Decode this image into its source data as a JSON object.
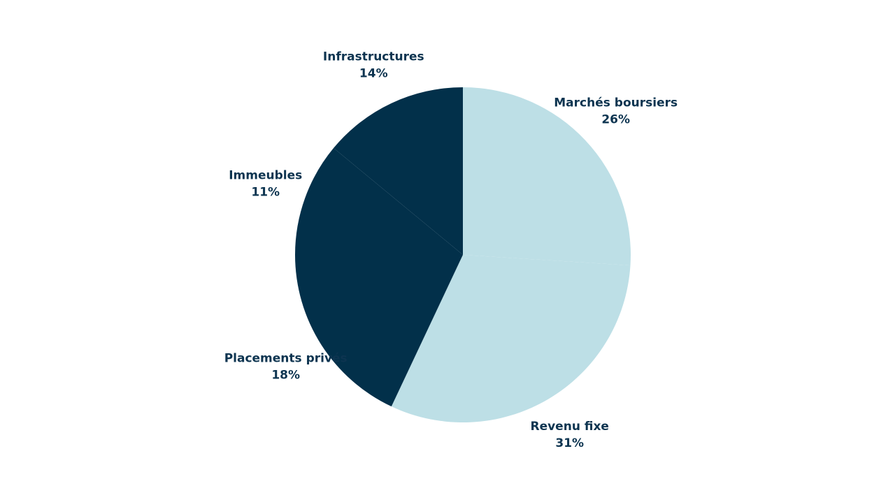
{
  "chart_data": {
    "type": "pie",
    "categories": [
      "Marchés boursiers",
      "Revenu fixe",
      "Placements privés",
      "Immeubles",
      "Infrastructures"
    ],
    "values": [
      26,
      31,
      18,
      11,
      14
    ],
    "value_labels": [
      "26%",
      "31%",
      "18%",
      "11%",
      "14%"
    ],
    "colors": [
      "#bddfe6",
      "#bddfe6",
      "#02304a",
      "#02304a",
      "#02304a"
    ]
  }
}
